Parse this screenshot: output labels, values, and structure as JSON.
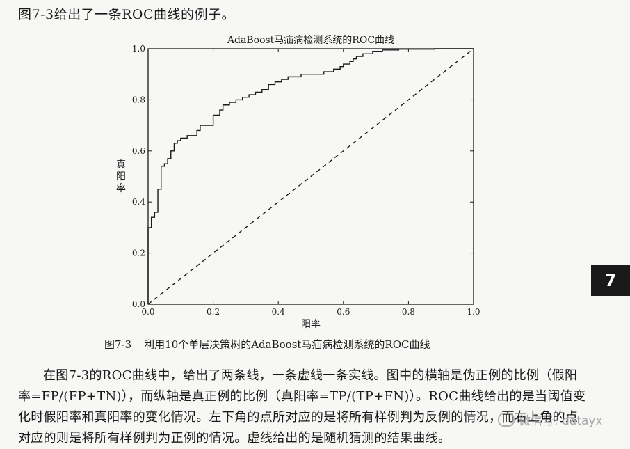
{
  "page": {
    "intro_text": "图7-3给出了一条ROC曲线的例子。",
    "caption_number": "图7-3",
    "caption_text": "利用10个单层决策树的AdaBoost马疝病检测系统的ROC曲线",
    "body_text": "在图7-3的ROC曲线中，给出了两条线，一条虚线一条实线。图中的横轴是伪正例的比例（假阳率=FP/(FP+TN)），而纵轴是真正例的比例（真阳率=TP/(TP+FN)）。ROC曲线给出的是当阈值变化时假阳率和真阳率的变化情况。左下角的点所对应的是将所有样例判为反例的情况，而右上角的点对应的则是将所有样例判为正例的情况。虚线给出的是随机猜测的结果曲线。",
    "chapter_tab": "7",
    "watermark": "微信号: datayx"
  },
  "chart_data": {
    "type": "line",
    "title": "AdaBoost马疝病检测系统的ROC曲线",
    "xlabel": "阳率",
    "ylabel": "真阳率",
    "xlim": [
      0.0,
      1.0
    ],
    "ylim": [
      0.0,
      1.0
    ],
    "xticks": [
      "0.0",
      "0.2",
      "0.4",
      "0.6",
      "0.8",
      "1.0"
    ],
    "yticks": [
      "0.0",
      "0.2",
      "0.4",
      "0.6",
      "0.8",
      "1.0"
    ],
    "grid": false,
    "legend": null,
    "series": [
      {
        "style": "solid",
        "color": "#1a1a1a",
        "x": [
          0.0,
          0.0,
          0.01,
          0.01,
          0.02,
          0.02,
          0.03,
          0.03,
          0.04,
          0.04,
          0.05,
          0.05,
          0.06,
          0.06,
          0.07,
          0.07,
          0.08,
          0.08,
          0.09,
          0.09,
          0.1,
          0.1,
          0.12,
          0.12,
          0.15,
          0.15,
          0.16,
          0.16,
          0.2,
          0.2,
          0.22,
          0.22,
          0.23,
          0.23,
          0.25,
          0.25,
          0.27,
          0.27,
          0.29,
          0.29,
          0.31,
          0.31,
          0.33,
          0.33,
          0.35,
          0.35,
          0.37,
          0.37,
          0.39,
          0.39,
          0.41,
          0.41,
          0.43,
          0.43,
          0.47,
          0.47,
          0.54,
          0.54,
          0.57,
          0.57,
          0.59,
          0.59,
          0.6,
          0.6,
          0.62,
          0.62,
          0.63,
          0.63,
          0.64,
          0.64,
          0.66,
          0.66,
          0.69,
          0.69,
          0.72,
          0.72,
          0.77,
          0.77,
          0.88,
          0.88,
          1.0
        ],
        "y": [
          0.0,
          0.3,
          0.3,
          0.34,
          0.34,
          0.36,
          0.36,
          0.45,
          0.45,
          0.54,
          0.54,
          0.55,
          0.55,
          0.57,
          0.57,
          0.6,
          0.6,
          0.63,
          0.63,
          0.64,
          0.64,
          0.65,
          0.65,
          0.66,
          0.66,
          0.68,
          0.68,
          0.7,
          0.7,
          0.74,
          0.74,
          0.76,
          0.76,
          0.78,
          0.78,
          0.79,
          0.79,
          0.8,
          0.8,
          0.81,
          0.81,
          0.82,
          0.82,
          0.83,
          0.83,
          0.84,
          0.84,
          0.86,
          0.86,
          0.87,
          0.87,
          0.88,
          0.88,
          0.89,
          0.89,
          0.9,
          0.9,
          0.91,
          0.91,
          0.92,
          0.92,
          0.93,
          0.93,
          0.94,
          0.94,
          0.95,
          0.95,
          0.96,
          0.96,
          0.97,
          0.97,
          0.98,
          0.98,
          0.99,
          0.99,
          0.995,
          0.995,
          0.998,
          0.998,
          1.0,
          1.0
        ]
      },
      {
        "style": "dashed",
        "color": "#1a1a1a",
        "x": [
          0.0,
          1.0
        ],
        "y": [
          0.0,
          1.0
        ]
      }
    ]
  }
}
